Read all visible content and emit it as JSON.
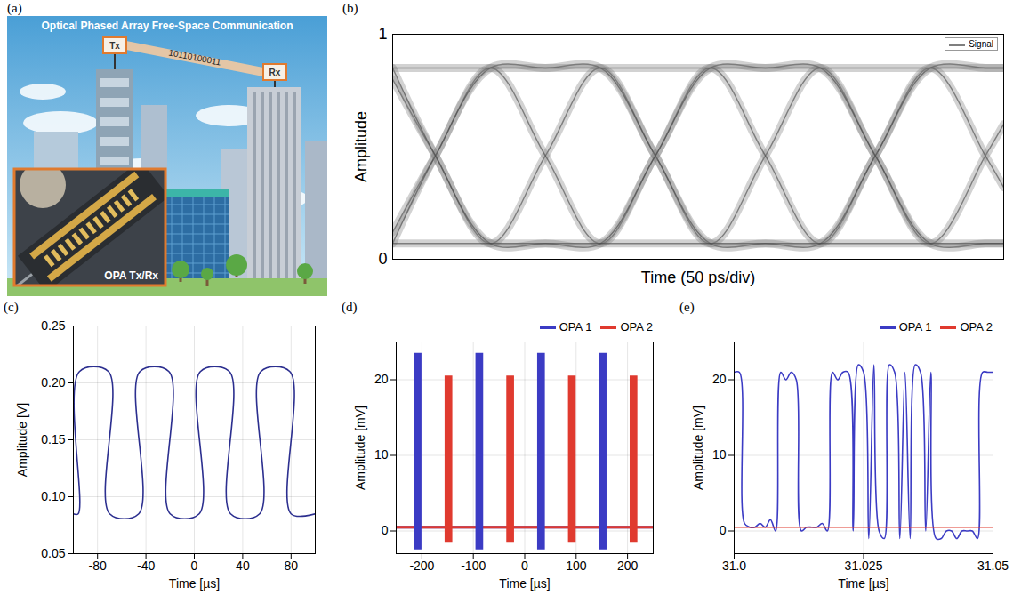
{
  "chart_data": [
    {
      "panel": "(a)",
      "type": "illustration",
      "title": "Optical Phased Array Free-Space Communication",
      "transmitter": "Tx",
      "receiver": "Rx",
      "bits": "10110100011",
      "inset_label": "OPA Tx/Rx"
    },
    {
      "panel": "(b)",
      "type": "eye",
      "x_label": "Time (50 ps/div)",
      "y_label": "Amplitude",
      "xlim": [
        0,
        500
      ],
      "ylim": [
        0,
        1
      ],
      "yticks": [
        0,
        1
      ],
      "tick_labels": "y",
      "grid": false,
      "legend": "top-right",
      "x": [
        0,
        35,
        80,
        125,
        170,
        215,
        260,
        305,
        350,
        395,
        440,
        485,
        500
      ],
      "series": [
        {
          "name": "Signal",
          "color": "#7f7f7f",
          "traces": [
            [
              0.8,
              0.46,
              0.07,
              0.46,
              0.85,
              0.46,
              0.07,
              0.46,
              0.85,
              0.46,
              0.07,
              0.46,
              0.6
            ],
            [
              0.12,
              0.46,
              0.85,
              0.46,
              0.07,
              0.46,
              0.85,
              0.46,
              0.07,
              0.46,
              0.85,
              0.46,
              0.32
            ],
            [
              0.07,
              0.46,
              0.85,
              0.85,
              0.85,
              0.46,
              0.07,
              0.07,
              0.07,
              0.46,
              0.85,
              0.85,
              0.85
            ],
            [
              0.85,
              0.46,
              0.07,
              0.07,
              0.07,
              0.46,
              0.85,
              0.85,
              0.85,
              0.46,
              0.07,
              0.07,
              0.07
            ],
            [
              0.85,
              0.85,
              0.85,
              0.85,
              0.85,
              0.85,
              0.85,
              0.85,
              0.85,
              0.85,
              0.85,
              0.85,
              0.85
            ],
            [
              0.07,
              0.07,
              0.07,
              0.07,
              0.07,
              0.07,
              0.07,
              0.07,
              0.07,
              0.07,
              0.07,
              0.07,
              0.07
            ]
          ]
        }
      ]
    },
    {
      "panel": "(c)",
      "type": "line",
      "x_label": "Time [µs]",
      "y_label": "Amplitude [V]",
      "xlim": [
        -100,
        100
      ],
      "xticks": [
        -80,
        -40,
        0,
        40,
        80
      ],
      "ylim": [
        0.05,
        0.25
      ],
      "yticks": [
        0.05,
        {
          "value": 0.1,
          "label": "0.10"
        },
        0.15,
        {
          "value": 0.2,
          "label": "0.20"
        },
        0.25
      ],
      "grid": true,
      "color": "#2c2f8f",
      "x": [
        -100,
        -96,
        -95,
        -71,
        -70,
        -46,
        -45,
        -21,
        -20,
        4,
        5,
        29,
        30,
        54,
        55,
        79,
        80,
        100
      ],
      "values": [
        0.085,
        0.085,
        0.21,
        0.21,
        0.085,
        0.085,
        0.21,
        0.21,
        0.085,
        0.085,
        0.21,
        0.21,
        0.085,
        0.085,
        0.21,
        0.21,
        0.085,
        0.085
      ]
    },
    {
      "panel": "(d)",
      "type": "burst",
      "x_label": "Time [µs]",
      "y_label": "Amplitude [mV]",
      "xlim": [
        -250,
        250
      ],
      "xticks": [
        -200,
        -100,
        0,
        100,
        200
      ],
      "ylim": [
        -3,
        25
      ],
      "yticks": [
        0,
        10,
        20
      ],
      "grid": true,
      "legend": "top-right",
      "series": [
        {
          "name": "OPA 1",
          "color": "#3b3bc4",
          "bursts": [
            [
              -215,
              -200
            ],
            [
              -95,
              -80
            ],
            [
              25,
              40
            ],
            [
              145,
              160
            ]
          ],
          "low": -2.5,
          "high": 23.5,
          "baseline": 0.5
        },
        {
          "name": "OPA 2",
          "color": "#e03a2f",
          "bursts": [
            [
              -155,
              -140
            ],
            [
              -35,
              -20
            ],
            [
              85,
              100
            ],
            [
              205,
              220
            ]
          ],
          "low": -1.5,
          "high": 20.5,
          "baseline": 0.5
        }
      ]
    },
    {
      "panel": "(e)",
      "type": "line",
      "x_label": "Time [µs]",
      "y_label": "Amplitude [mV]",
      "xlim": [
        31.0,
        31.05
      ],
      "xticks": [
        {
          "value": 31.0,
          "label": "31.0"
        },
        31.025,
        31.05
      ],
      "ylim": [
        -3,
        25
      ],
      "yticks": [
        0,
        10,
        20
      ],
      "grid": true,
      "legend": "top-right",
      "series": [
        {
          "name": "OPA 1",
          "color": "#3b3bc4",
          "x": [
            31.0,
            31.001,
            31.002,
            31.003,
            31.004,
            31.005,
            31.006,
            31.007,
            31.008,
            31.009,
            31.01,
            31.011,
            31.012,
            31.013,
            31.014,
            31.015,
            31.016,
            31.017,
            31.018,
            31.019,
            31.02,
            31.021,
            31.022,
            31.023,
            31.024,
            31.025,
            31.026,
            31.027,
            31.028,
            31.029,
            31.03,
            31.031,
            31.032,
            31.033,
            31.034,
            31.035,
            31.036,
            31.037,
            31.038,
            31.039,
            31.04,
            31.041,
            31.042,
            31.043,
            31.044,
            31.045,
            31.046,
            31.047,
            31.048,
            31.049,
            31.05
          ],
          "values": [
            21,
            21,
            1,
            0.5,
            0.5,
            1,
            0.5,
            1.5,
            0,
            21,
            20,
            21,
            20,
            0,
            0.5,
            0.5,
            0.5,
            1,
            0,
            21,
            20,
            21,
            21,
            0,
            22,
            21,
            -1,
            22,
            0,
            -1,
            22,
            21,
            -1,
            21,
            -1,
            22,
            21,
            0,
            21,
            -1,
            -1,
            0,
            0,
            -1,
            0,
            0,
            0,
            -1,
            21,
            21,
            21
          ]
        },
        {
          "name": "OPA 2",
          "color": "#e03a2f",
          "x": [
            31.0,
            31.05
          ],
          "values": [
            0.5,
            0.5
          ]
        }
      ]
    }
  ]
}
